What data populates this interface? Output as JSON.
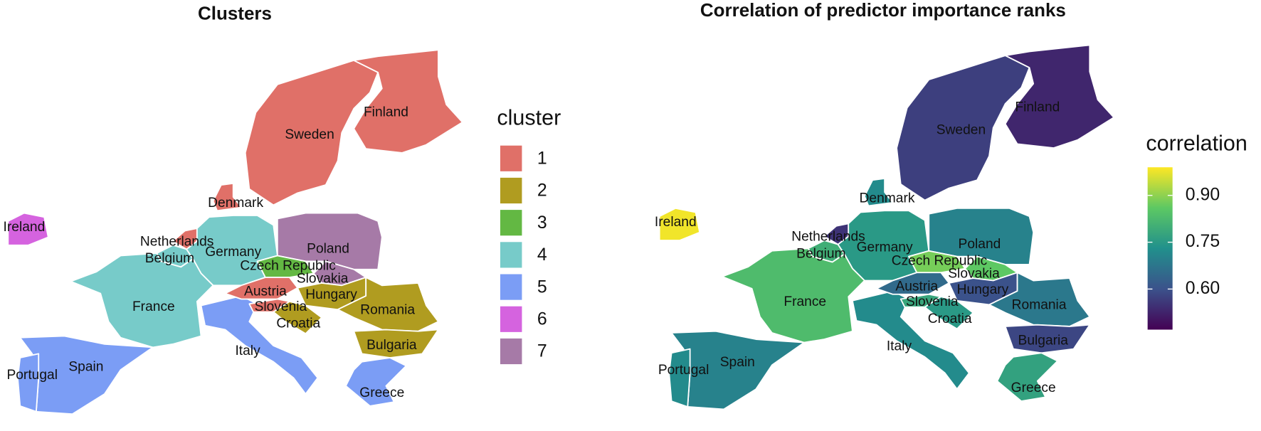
{
  "maps": [
    {
      "title": "Clusters",
      "legend_title": "cluster",
      "legend": [
        {
          "value": 1,
          "color": "#e07068"
        },
        {
          "value": 2,
          "color": "#b09c20"
        },
        {
          "value": 3,
          "color": "#63b843"
        },
        {
          "value": 4,
          "color": "#77cbc9"
        },
        {
          "value": 5,
          "color": "#7b9df5"
        },
        {
          "value": 6,
          "color": "#d563df"
        },
        {
          "value": 7,
          "color": "#a67aa7"
        }
      ],
      "countries": [
        {
          "name": "Sweden",
          "cluster": 1
        },
        {
          "name": "Finland",
          "cluster": 1
        },
        {
          "name": "Denmark",
          "cluster": 1
        },
        {
          "name": "Netherlands",
          "cluster": 1
        },
        {
          "name": "Belgium",
          "cluster": 4
        },
        {
          "name": "Germany",
          "cluster": 4
        },
        {
          "name": "France",
          "cluster": 4
        },
        {
          "name": "Spain",
          "cluster": 5
        },
        {
          "name": "Portugal",
          "cluster": 5
        },
        {
          "name": "Italy",
          "cluster": 5
        },
        {
          "name": "Ireland",
          "cluster": 6
        },
        {
          "name": "Poland",
          "cluster": 7
        },
        {
          "name": "Czech Republic",
          "cluster": 3
        },
        {
          "name": "Slovakia",
          "cluster": 7
        },
        {
          "name": "Austria",
          "cluster": 1
        },
        {
          "name": "Hungary",
          "cluster": 2
        },
        {
          "name": "Slovenia",
          "cluster": 1
        },
        {
          "name": "Croatia",
          "cluster": 2
        },
        {
          "name": "Romania",
          "cluster": 2
        },
        {
          "name": "Bulgaria",
          "cluster": 2
        },
        {
          "name": "Greece",
          "cluster": 5
        }
      ]
    },
    {
      "title": "Correlation of predictor importance ranks",
      "legend_title": "correlation",
      "colorbar": {
        "lim": [
          0.47,
          0.99
        ],
        "ticks": [
          {
            "value": 0.6,
            "label": "0.60"
          },
          {
            "value": 0.75,
            "label": "0.75"
          },
          {
            "value": 0.9,
            "label": "0.90"
          }
        ]
      },
      "countries": [
        {
          "name": "Sweden",
          "correlation": 0.57
        },
        {
          "name": "Finland",
          "correlation": 0.53
        },
        {
          "name": "Denmark",
          "correlation": 0.72
        },
        {
          "name": "Netherlands",
          "correlation": 0.55
        },
        {
          "name": "Belgium",
          "correlation": 0.8
        },
        {
          "name": "Germany",
          "correlation": 0.75
        },
        {
          "name": "France",
          "correlation": 0.83
        },
        {
          "name": "Spain",
          "correlation": 0.7
        },
        {
          "name": "Portugal",
          "correlation": 0.72
        },
        {
          "name": "Italy",
          "correlation": 0.72
        },
        {
          "name": "Ireland",
          "correlation": 0.98
        },
        {
          "name": "Poland",
          "correlation": 0.7
        },
        {
          "name": "Czech Republic",
          "correlation": 0.88
        },
        {
          "name": "Slovakia",
          "correlation": 0.86
        },
        {
          "name": "Austria",
          "correlation": 0.65
        },
        {
          "name": "Hungary",
          "correlation": 0.6
        },
        {
          "name": "Slovenia",
          "correlation": 0.78
        },
        {
          "name": "Croatia",
          "correlation": 0.75
        },
        {
          "name": "Romania",
          "correlation": 0.68
        },
        {
          "name": "Bulgaria",
          "correlation": 0.58
        },
        {
          "name": "Greece",
          "correlation": 0.77
        }
      ]
    }
  ]
}
